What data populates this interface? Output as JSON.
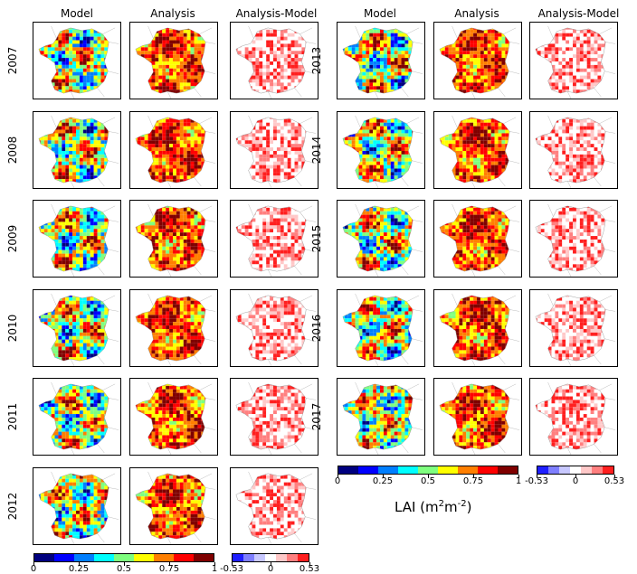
{
  "column_headers": [
    "Model",
    "Analysis",
    "Analysis-Model"
  ],
  "years_left": [
    "2007",
    "2008",
    "2009",
    "2010",
    "2011",
    "2012"
  ],
  "years_right": [
    "2013",
    "2014",
    "2015",
    "2016",
    "2017"
  ],
  "lai_colorbar": {
    "ticks": [
      "0",
      "0.25",
      "0.5",
      "0.75",
      "1"
    ],
    "colors": [
      "#00007f",
      "#0000ff",
      "#007fff",
      "#00ffff",
      "#7fff7f",
      "#ffff00",
      "#ff7f00",
      "#ff0000",
      "#7f0000"
    ]
  },
  "diff_colorbar": {
    "ticks": [
      "-0.53",
      "0",
      "0.53"
    ],
    "colors": [
      "#1f1fff",
      "#7f7fff",
      "#c8c8ff",
      "#ffffff",
      "#ffc8c8",
      "#ff7f7f",
      "#ff1f1f"
    ]
  },
  "unit_label": {
    "prefix": "LAI (m",
    "sup1": "2",
    "mid": "m",
    "sup2": "-2",
    "suffix": ")"
  }
}
